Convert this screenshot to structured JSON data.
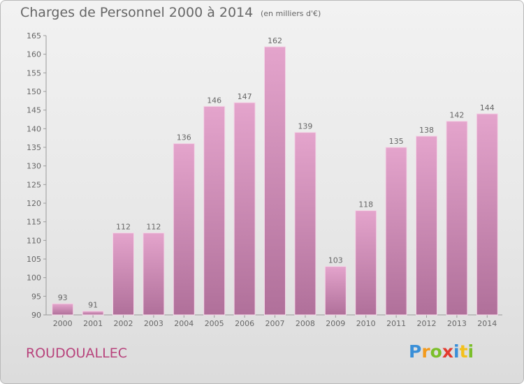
{
  "title": "Charges de Personnel 2000 à 2014",
  "subtitle": "(en milliers d'€)",
  "commune": "ROUDOUALLEC",
  "logo": {
    "letters": [
      "P",
      "r",
      "o",
      "x",
      "i",
      "t",
      "i"
    ],
    "colors": [
      "#3a8fd8",
      "#f39a1c",
      "#7bbf2a",
      "#e33a2e",
      "#3a8fd8",
      "#f3c01c",
      "#7bbf2a"
    ]
  },
  "colors": {
    "bar_top": "#e4a4cc",
    "bar_bottom": "#b0709a",
    "accent": "#b8437c",
    "text": "#666666"
  },
  "chart_data": {
    "type": "bar",
    "title": "Charges de Personnel 2000 à 2014",
    "subtitle": "(en milliers d'€)",
    "categories": [
      "2000",
      "2001",
      "2002",
      "2003",
      "2004",
      "2005",
      "2006",
      "2007",
      "2008",
      "2009",
      "2010",
      "2011",
      "2012",
      "2013",
      "2014"
    ],
    "values": [
      93,
      91,
      112,
      112,
      136,
      146,
      147,
      162,
      139,
      103,
      118,
      135,
      138,
      142,
      144
    ],
    "ylim": [
      90,
      165
    ],
    "yticks": [
      90,
      95,
      100,
      105,
      110,
      115,
      120,
      125,
      130,
      135,
      140,
      145,
      150,
      155,
      160,
      165
    ],
    "grid": false,
    "legend": "none",
    "xlabel": "",
    "ylabel": ""
  }
}
